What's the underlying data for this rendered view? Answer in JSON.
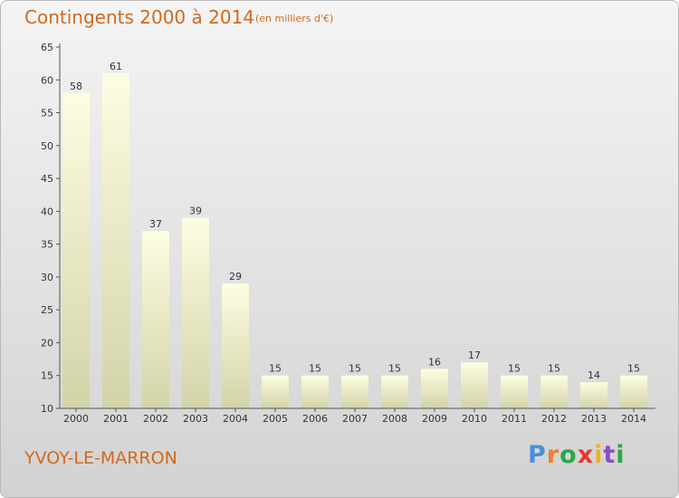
{
  "header": {
    "title": "Contingents 2000 à 2014",
    "subtitle": "(en milliers d'€)"
  },
  "footer": {
    "place": "YVOY-LE-MARRON",
    "logo_text": "Proxiti"
  },
  "colors": {
    "title": "#d2691e",
    "bar_top": "#fdfde2",
    "bar_bottom": "#d3d3a9",
    "logo_letters": [
      "#4a8fdc",
      "#f08030",
      "#2aa84a",
      "#e23b2e",
      "#f2b01e",
      "#8a4fbf",
      "#2aa84a"
    ]
  },
  "chart_data": {
    "type": "bar",
    "title": "Contingents 2000 à 2014",
    "subtitle": "(en milliers d'€)",
    "categories": [
      "2000",
      "2001",
      "2002",
      "2003",
      "2004",
      "2005",
      "2006",
      "2007",
      "2008",
      "2009",
      "2010",
      "2011",
      "2012",
      "2013",
      "2014"
    ],
    "values": [
      58,
      61,
      37,
      39,
      29,
      15,
      15,
      15,
      15,
      16,
      17,
      15,
      15,
      14,
      15
    ],
    "ylim": [
      10,
      65
    ],
    "yticks": [
      10,
      15,
      20,
      25,
      30,
      35,
      40,
      45,
      50,
      55,
      60,
      65
    ],
    "grid": false,
    "legend": "none"
  }
}
